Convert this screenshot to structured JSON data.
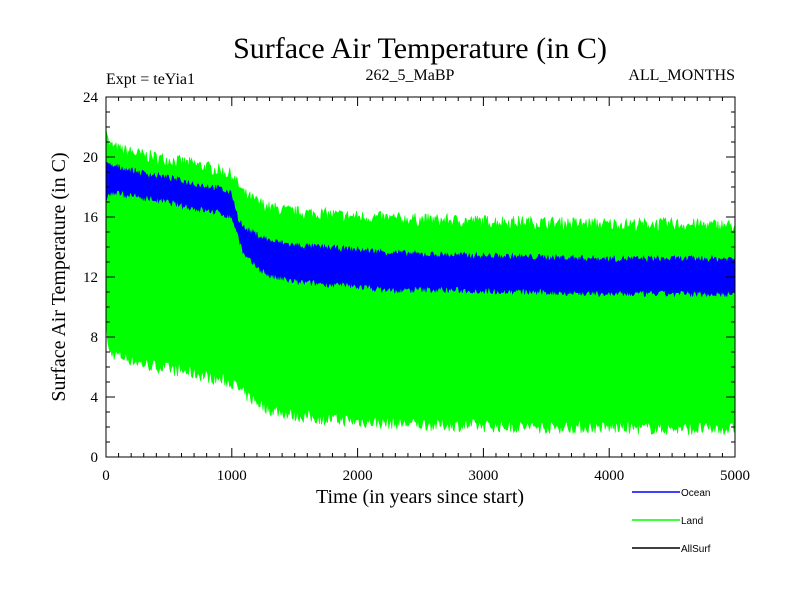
{
  "chart_data": {
    "type": "line",
    "title": "Surface Air Temperature (in C)",
    "subtitle_left": "Expt = teYia1",
    "subtitle_center": "262_5_MaBP",
    "subtitle_right": "ALL_MONTHS",
    "xlabel": "Time (in years since start)",
    "ylabel": "Surface Air Temperature (in C)",
    "xlim": [
      0,
      5000
    ],
    "ylim": [
      0,
      24
    ],
    "x_ticks": [
      "0",
      "1000",
      "2000",
      "3000",
      "4000",
      "5000"
    ],
    "y_ticks": [
      "0",
      "4",
      "8",
      "12",
      "16",
      "20",
      "24"
    ],
    "legend_position": "bottom-right",
    "series": [
      {
        "name": "Ocean",
        "color": "#0000ff",
        "envelope": {
          "x": [
            0,
            30,
            100,
            300,
            500,
            700,
            900,
            1000,
            1050,
            1100,
            1200,
            1300,
            1500,
            2000,
            2300,
            2500,
            3000,
            3500,
            4000,
            4500,
            5000
          ],
          "low": [
            17.2,
            17.6,
            17.6,
            17.3,
            17.0,
            16.6,
            16.3,
            16.0,
            14.8,
            13.4,
            12.7,
            12.1,
            11.7,
            11.4,
            11.1,
            11.2,
            11.1,
            11.0,
            10.9,
            10.9,
            10.9
          ],
          "high": [
            19.5,
            19.4,
            19.3,
            18.9,
            18.6,
            18.2,
            17.9,
            17.5,
            15.9,
            15.2,
            14.8,
            14.4,
            14.1,
            13.8,
            13.6,
            13.5,
            13.4,
            13.3,
            13.2,
            13.2,
            13.2
          ]
        }
      },
      {
        "name": "Land",
        "color": "#00ff00",
        "envelope": {
          "x": [
            0,
            20,
            100,
            300,
            500,
            700,
            900,
            1000,
            1100,
            1200,
            1300,
            1500,
            1700,
            2000,
            2500,
            3000,
            3500,
            4000,
            4500,
            5000
          ],
          "low": [
            9.5,
            7.0,
            6.8,
            6.2,
            5.9,
            5.6,
            5.2,
            5.0,
            4.2,
            3.7,
            3.2,
            2.8,
            2.6,
            2.4,
            2.2,
            2.1,
            2.0,
            2.0,
            1.9,
            1.9
          ],
          "high": [
            22.3,
            20.8,
            20.5,
            20.1,
            19.8,
            19.5,
            19.1,
            18.8,
            17.5,
            17.0,
            16.6,
            16.3,
            16.2,
            16.0,
            15.8,
            15.7,
            15.6,
            15.5,
            15.5,
            15.4
          ]
        }
      },
      {
        "name": "AllSurf",
        "color": "#000000"
      }
    ]
  }
}
